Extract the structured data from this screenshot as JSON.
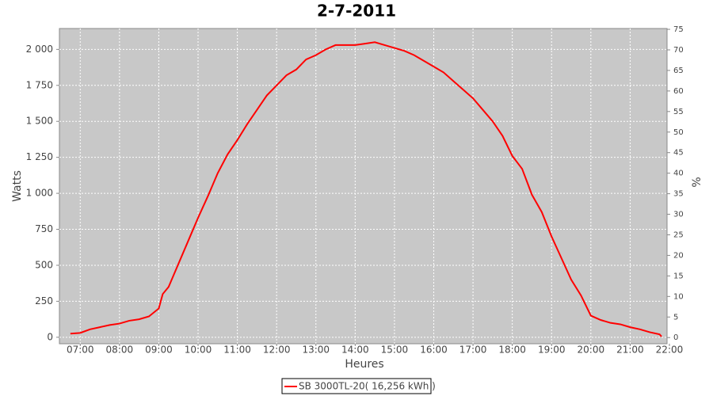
{
  "chart_data": {
    "type": "line",
    "title": "2-7-2011",
    "x_label": "Heures",
    "y_label": "Watts",
    "y2_label": "%",
    "xlim": [
      6.47,
      21.94
    ],
    "xticks": [
      {
        "value": 7,
        "label": "07:00"
      },
      {
        "value": 8,
        "label": "08:00"
      },
      {
        "value": 9,
        "label": "09:00"
      },
      {
        "value": 10,
        "label": "10:00"
      },
      {
        "value": 11,
        "label": "11:00"
      },
      {
        "value": 12,
        "label": "12:00"
      },
      {
        "value": 13,
        "label": "13:00"
      },
      {
        "value": 14,
        "label": "14:00"
      },
      {
        "value": 15,
        "label": "15:00"
      },
      {
        "value": 16,
        "label": "16:00"
      },
      {
        "value": 17,
        "label": "17:00"
      },
      {
        "value": 18,
        "label": "18:00"
      },
      {
        "value": 19,
        "label": "19:00"
      },
      {
        "value": 20,
        "label": "20:00"
      },
      {
        "value": 21,
        "label": "21:00"
      },
      {
        "value": 22,
        "label": "22:00"
      }
    ],
    "ylim": [
      -45,
      2145
    ],
    "yticks": [
      0,
      250,
      500,
      750,
      {
        "value": 1000,
        "label": "1 000"
      },
      {
        "value": 1250,
        "label": "1 250"
      },
      {
        "value": 1500,
        "label": "1 500"
      },
      {
        "value": 1750,
        "label": "1 750"
      },
      {
        "value": 2000,
        "label": "2 000"
      }
    ],
    "y2lim": [
      -1.5,
      75.2
    ],
    "y2ticks": [
      0,
      5,
      10,
      15,
      20,
      25,
      30,
      35,
      40,
      45,
      50,
      55,
      60,
      65,
      70,
      75
    ],
    "grid": true,
    "legend": "bottom",
    "x": [
      6.75,
      7.0,
      7.25,
      7.5,
      7.75,
      8.0,
      8.25,
      8.5,
      8.75,
      9.0,
      9.1,
      9.25,
      9.5,
      9.75,
      10.0,
      10.25,
      10.5,
      10.75,
      11.0,
      11.25,
      11.5,
      11.75,
      12.0,
      12.25,
      12.5,
      12.75,
      13.0,
      13.25,
      13.5,
      13.75,
      14.0,
      14.25,
      14.5,
      14.75,
      15.0,
      15.25,
      15.5,
      15.75,
      16.0,
      16.25,
      16.5,
      16.75,
      17.0,
      17.25,
      17.5,
      17.75,
      18.0,
      18.25,
      18.5,
      18.75,
      19.0,
      19.25,
      19.5,
      19.75,
      20.0,
      20.25,
      20.5,
      20.75,
      21.0,
      21.25,
      21.5,
      21.75,
      21.8
    ],
    "series": [
      {
        "name": "SB 3000TL-20( 16,256 kWh )",
        "color": "#ff0000",
        "values": [
          25,
          30,
          55,
          70,
          85,
          95,
          115,
          125,
          145,
          200,
          300,
          350,
          510,
          670,
          830,
          980,
          1140,
          1270,
          1370,
          1480,
          1580,
          1680,
          1750,
          1820,
          1860,
          1930,
          1960,
          2000,
          2030,
          2030,
          2030,
          2040,
          2050,
          2030,
          2010,
          1990,
          1960,
          1920,
          1880,
          1840,
          1780,
          1720,
          1660,
          1580,
          1500,
          1400,
          1260,
          1170,
          990,
          870,
          700,
          550,
          400,
          290,
          150,
          120,
          100,
          90,
          70,
          55,
          35,
          20,
          5
        ]
      }
    ]
  }
}
